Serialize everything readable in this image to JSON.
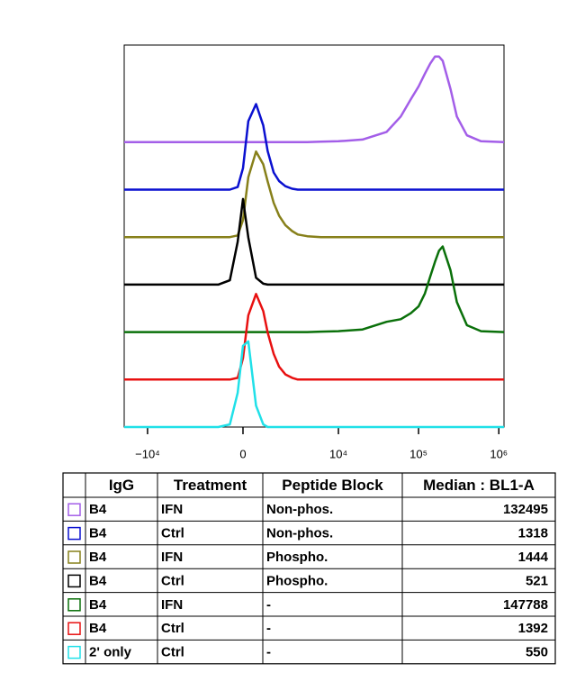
{
  "chart_data": {
    "type": "offset-histogram",
    "xscale": "biexponential",
    "xlim": [
      -19600,
      1160000
    ],
    "ylim": [
      0,
      100
    ],
    "xticks": [
      {
        "value": -10000,
        "label": "−10⁴"
      },
      0,
      {
        "value": 10000,
        "label": "10⁴"
      },
      {
        "value": 100000,
        "label": "10⁵"
      },
      {
        "value": 1000000,
        "label": "10⁶"
      }
    ],
    "x": [
      -19600,
      -5000,
      -2000,
      -1000,
      -500,
      -200,
      0,
      200,
      500,
      800,
      1000,
      1300,
      1600,
      2000,
      2500,
      3000,
      4000,
      6000,
      10000,
      20000,
      40000,
      60000,
      80000,
      100000,
      120000,
      140000,
      160000,
      180000,
      200000,
      250000,
      300000,
      400000,
      600000,
      1160000
    ],
    "series": [
      {
        "color": "#a35ee8",
        "values": [
          0,
          0,
          0,
          0,
          0,
          0,
          0,
          0,
          0,
          0,
          0,
          0,
          0,
          0,
          0,
          0,
          0,
          0.5,
          1,
          3,
          12,
          30,
          50,
          65,
          80,
          92,
          100,
          100,
          95,
          62,
          30,
          8,
          1,
          0
        ]
      },
      {
        "color": "#0a10d0",
        "values": [
          0,
          0,
          0,
          0,
          0,
          3,
          25,
          80,
          100,
          75,
          45,
          20,
          10,
          4,
          1,
          0,
          0,
          0,
          0,
          0,
          0,
          0,
          0,
          0,
          0,
          0,
          0,
          0,
          0,
          0,
          0,
          0,
          0,
          0
        ]
      },
      {
        "color": "#87801a",
        "values": [
          0,
          0,
          0,
          0,
          0,
          2,
          20,
          70,
          100,
          85,
          65,
          40,
          25,
          14,
          7,
          3,
          1,
          0,
          0,
          0,
          0,
          0,
          0,
          0,
          0,
          0,
          0,
          0,
          0,
          0,
          0,
          0,
          0,
          0
        ]
      },
      {
        "color": "#000000",
        "values": [
          0,
          0,
          0,
          0,
          5,
          50,
          100,
          55,
          8,
          1,
          0,
          0,
          0,
          0,
          0,
          0,
          0,
          0,
          0,
          0,
          0,
          0,
          0,
          0,
          0,
          0,
          0,
          0,
          0,
          0,
          0,
          0,
          0,
          0
        ]
      },
      {
        "color": "#0a700a",
        "values": [
          0,
          0,
          0,
          0,
          0,
          0,
          0,
          0,
          0,
          0,
          0,
          0,
          0,
          0,
          0,
          0,
          0,
          0.5,
          1,
          3,
          12,
          15,
          22,
          30,
          45,
          65,
          82,
          95,
          100,
          72,
          35,
          8,
          1,
          0
        ]
      },
      {
        "color": "#e81010",
        "values": [
          0,
          0,
          0,
          0,
          0,
          2,
          25,
          75,
          100,
          80,
          55,
          30,
          15,
          6,
          2,
          0,
          0,
          0,
          0,
          0,
          0,
          0,
          0,
          0,
          0,
          0,
          0,
          0,
          0,
          0,
          0,
          0,
          0,
          0
        ]
      },
      {
        "color": "#20e0e8",
        "values": [
          0,
          0,
          0,
          0,
          3,
          40,
          95,
          100,
          25,
          3,
          0,
          0,
          0,
          0,
          0,
          0,
          0,
          0,
          0,
          0,
          0,
          0,
          0,
          0,
          0,
          0,
          0,
          0,
          0,
          0,
          0,
          0,
          0,
          0
        ]
      }
    ]
  },
  "table": {
    "header": [
      "IgG",
      "Treatment",
      "Peptide Block",
      "Median : BL1-A"
    ],
    "rows": [
      [
        "B4",
        "IFN",
        "Non-phos.",
        132495
      ],
      [
        "B4",
        "Ctrl",
        "Non-phos.",
        1318
      ],
      [
        "B4",
        "IFN",
        "Phospho.",
        1444
      ],
      [
        "B4",
        "Ctrl",
        "Phospho.",
        521
      ],
      [
        "B4",
        "IFN",
        "-",
        147788
      ],
      [
        "B4",
        "Ctrl",
        "-",
        1392
      ],
      [
        "2' only",
        "Ctrl",
        "-",
        550
      ]
    ]
  }
}
